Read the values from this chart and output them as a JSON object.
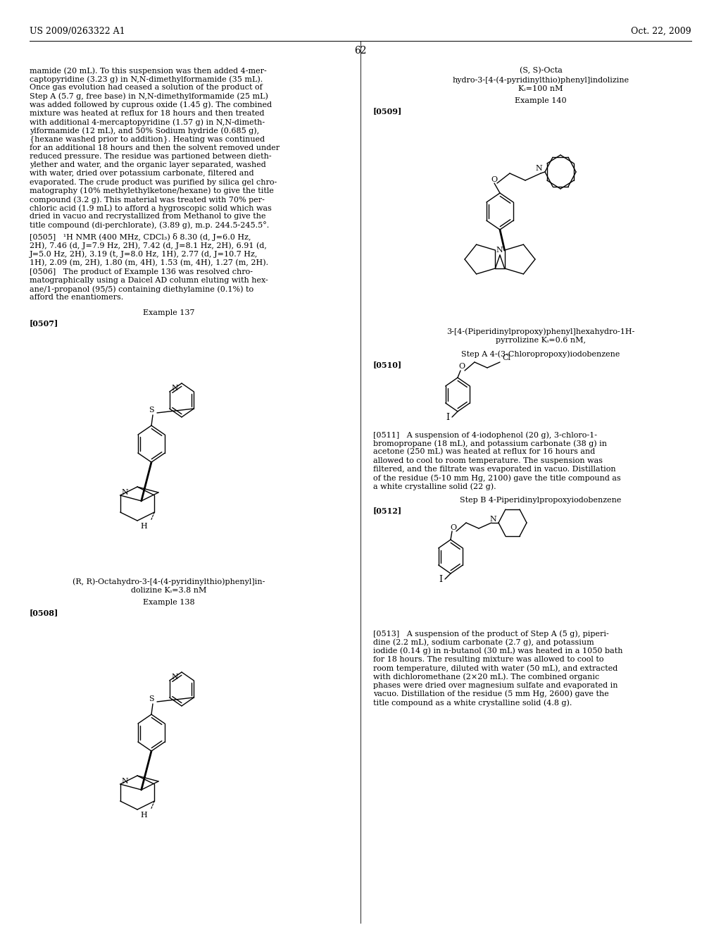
{
  "background_color": "#ffffff",
  "header_left": "US 2009/0263322 A1",
  "header_right": "Oct. 22, 2009",
  "page_number": "62"
}
